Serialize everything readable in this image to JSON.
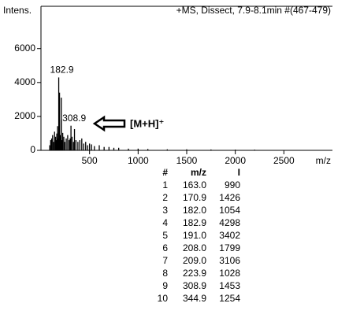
{
  "chart_data": {
    "type": "stick",
    "y_label": "Intens.",
    "x_label": "m/z",
    "title": "+MS, Dissect, 7.9-8.1min #(467-479)",
    "color": "#000000",
    "x": [
      90,
      100,
      110,
      120,
      130,
      140,
      150,
      155,
      163.0,
      170.9,
      175,
      182.0,
      182.9,
      191.0,
      198,
      208.0,
      209.0,
      215,
      223.9,
      235,
      245,
      260,
      275,
      290,
      300,
      308.9,
      320,
      335,
      344.9,
      360,
      380,
      400,
      420,
      440,
      460,
      480,
      500,
      520,
      550,
      600,
      650,
      700,
      750,
      800,
      900,
      1000,
      1100,
      1300,
      1500,
      1750,
      2000,
      2200
    ],
    "values": [
      300,
      600,
      700,
      900,
      500,
      1100,
      800,
      600,
      990,
      1426,
      700,
      1054,
      4298,
      3402,
      900,
      1799,
      3106,
      600,
      1028,
      800,
      500,
      700,
      900,
      600,
      700,
      1453,
      800,
      500,
      1254,
      600,
      500,
      600,
      700,
      400,
      500,
      300,
      400,
      350,
      250,
      300,
      200,
      200,
      150,
      150,
      100,
      100,
      80,
      60,
      60,
      50,
      40,
      40
    ],
    "xlim": [
      0,
      3000
    ],
    "xticks": [
      500,
      1000,
      1500,
      2000,
      2500
    ],
    "ylim": [
      0,
      8400
    ],
    "yticks": [
      0,
      2000,
      4000,
      6000
    ],
    "annotations": [
      {
        "x": 182.9,
        "y": 4298,
        "label": "182.9"
      },
      {
        "x": 308.9,
        "y": 1453,
        "label": "308.9"
      }
    ],
    "callout": "[M+H]⁺"
  },
  "table": {
    "header": [
      "#",
      "m/z",
      "I"
    ],
    "rows": [
      [
        "1",
        "163.0",
        "990"
      ],
      [
        "2",
        "170.9",
        "1426"
      ],
      [
        "3",
        "182.0",
        "1054"
      ],
      [
        "4",
        "182.9",
        "4298"
      ],
      [
        "5",
        "191.0",
        "3402"
      ],
      [
        "6",
        "208.0",
        "1799"
      ],
      [
        "7",
        "209.0",
        "3106"
      ],
      [
        "8",
        "223.9",
        "1028"
      ],
      [
        "9",
        "308.9",
        "1453"
      ],
      [
        "10",
        "344.9",
        "1254"
      ]
    ]
  }
}
